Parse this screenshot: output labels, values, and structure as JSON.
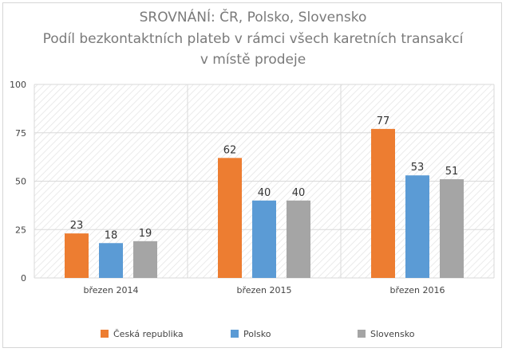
{
  "chart_data": {
    "type": "bar",
    "title": [
      "SROVNÁNÍ: ČR, Polsko, Slovensko",
      "Podíl bezkontaktních plateb v rámci všech karetních transakcí",
      "v místě prodeje"
    ],
    "categories": [
      "březen 2014",
      "březen 2015",
      "březen 2016"
    ],
    "series": [
      {
        "name": "Česká republika",
        "color": "#ED7D31",
        "values": [
          23,
          62,
          77
        ]
      },
      {
        "name": "Polsko",
        "color": "#5B9BD5",
        "values": [
          18,
          40,
          53
        ]
      },
      {
        "name": "Slovensko",
        "color": "#A5A5A5",
        "values": [
          19,
          40,
          51
        ]
      }
    ],
    "ylim": [
      0,
      100
    ],
    "yticks": [
      "0",
      "25",
      "50",
      "75",
      "100"
    ],
    "grid": true,
    "legend_position": "bottom",
    "data_labels": true
  }
}
